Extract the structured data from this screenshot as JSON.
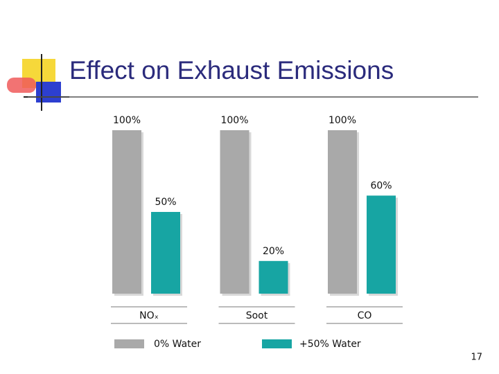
{
  "chart_data": {
    "type": "bar",
    "title": "Effect on Exhaust Emissions",
    "categories": [
      "NOₓ",
      "Soot",
      "CO"
    ],
    "series": [
      {
        "name": "0% Water",
        "color": "#a9a9a9",
        "values": [
          100,
          100,
          100
        ],
        "value_labels": [
          "100%",
          "100%",
          "100%"
        ]
      },
      {
        "name": "+50% Water",
        "color": "#17a5a3",
        "values": [
          50,
          20,
          60
        ],
        "value_labels": [
          "50%",
          "20%",
          "60%"
        ]
      }
    ]
  },
  "page_number": "17"
}
